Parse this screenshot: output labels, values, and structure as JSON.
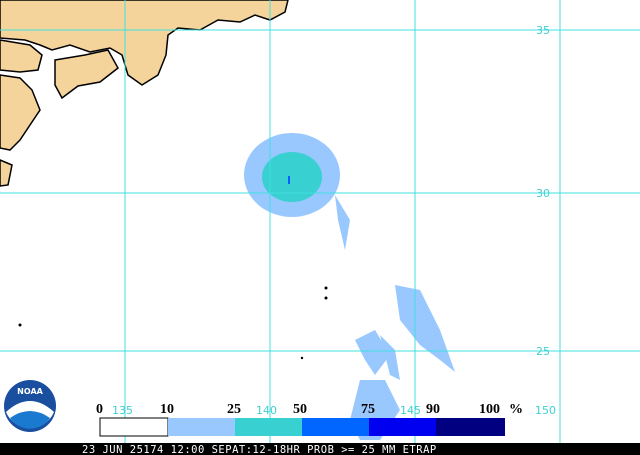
{
  "map": {
    "lat_labels": [
      "35",
      "30",
      "25"
    ],
    "lon_labels": [
      "135",
      "140",
      "145",
      "150"
    ]
  },
  "legend": {
    "labels": [
      "0",
      "10",
      "25",
      "50",
      "75",
      "90",
      "100"
    ],
    "unit": "%"
  },
  "logo": "NOAA",
  "footer": "23 JUN 25174 12:00 SEPAT:12-18HR PROB >= 25 MM ETRAP"
}
